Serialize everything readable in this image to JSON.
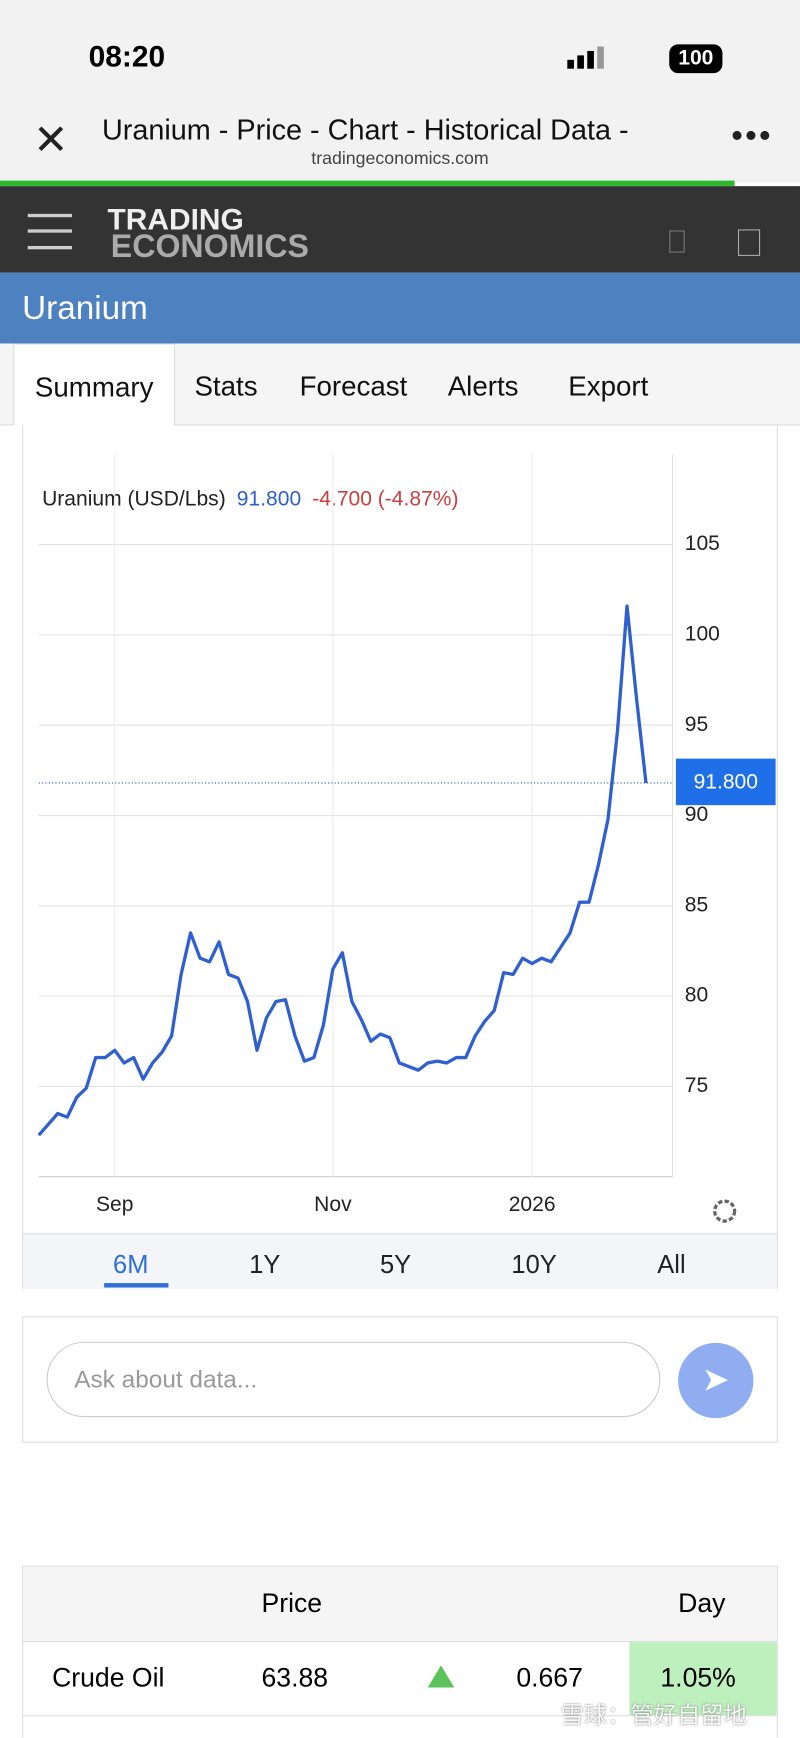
{
  "status_bar": {
    "time": "08:20",
    "battery": "100"
  },
  "browser": {
    "title": "Uranium - Price - Chart - Historical Data -",
    "url": "tradingeconomics.com"
  },
  "header": {
    "logo_top": "TRADING",
    "logo_bottom": "ECONOMICS"
  },
  "page_title": "Uranium",
  "tabs": [
    "Summary",
    "Stats",
    "Forecast",
    "Alerts",
    "Export"
  ],
  "chart_data": {
    "type": "line",
    "legend": {
      "name": "Uranium (USD/Lbs)",
      "value": "91.800",
      "change": "-4.700 (-4.87%)"
    },
    "categories": [
      null,
      null,
      null,
      null,
      null,
      null,
      null,
      null,
      "Sep",
      null,
      null,
      null,
      null,
      null,
      null,
      null,
      null,
      null,
      null,
      null,
      null,
      null,
      null,
      null,
      null,
      null,
      null,
      null,
      null,
      null,
      null,
      "Nov",
      null,
      null,
      null,
      null,
      null,
      null,
      null,
      null,
      null,
      null,
      null,
      null,
      null,
      null,
      null,
      null,
      null,
      null,
      null,
      null,
      "2026",
      null,
      null,
      null,
      null,
      null,
      null,
      null,
      null,
      null,
      null,
      null,
      null
    ],
    "series": [
      {
        "name": "Uranium",
        "color": "#3060d0",
        "values": [
          72.3,
          72.9,
          73.5,
          73.3,
          74.4,
          74.9,
          76.6,
          76.6,
          77.0,
          76.3,
          76.6,
          75.4,
          76.3,
          76.9,
          77.8,
          81.2,
          83.5,
          82.1,
          81.9,
          83.0,
          81.2,
          81.0,
          79.7,
          77.0,
          78.8,
          79.7,
          79.8,
          77.8,
          76.4,
          76.6,
          78.4,
          81.5,
          82.4,
          79.7,
          78.7,
          77.5,
          77.9,
          77.7,
          76.3,
          76.1,
          75.9,
          76.3,
          76.4,
          76.3,
          76.6,
          76.6,
          77.8,
          78.6,
          79.2,
          81.3,
          81.2,
          82.1,
          81.8,
          82.1,
          81.9,
          82.7,
          83.5,
          85.2,
          85.2,
          87.3,
          89.8,
          94.7,
          101.6,
          96.5,
          91.8
        ]
      }
    ],
    "ylim": [
      70,
      110
    ],
    "yticks": [
      75,
      80,
      85,
      90,
      95,
      100,
      105
    ],
    "grid": true
  },
  "ranges": [
    "6M",
    "1Y",
    "5Y",
    "10Y",
    "All"
  ],
  "ask": {
    "placeholder": "Ask about data..."
  },
  "table": {
    "header": [
      "Price",
      "Day"
    ],
    "rows": [
      [
        "Crude Oil",
        "63.88",
        "0.667",
        "1.05%"
      ]
    ]
  },
  "watermark": "雪球：管好自留地"
}
